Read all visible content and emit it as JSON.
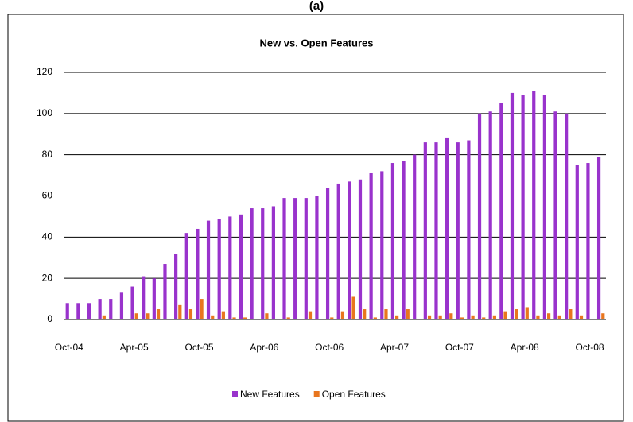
{
  "caption": "(a)",
  "chart_data": {
    "type": "bar",
    "title": "New vs. Open Features",
    "categories": [
      "Oct-04",
      null,
      null,
      null,
      null,
      null,
      "Apr-05",
      null,
      null,
      null,
      null,
      null,
      "Oct-05",
      null,
      null,
      null,
      null,
      null,
      "Apr-06",
      null,
      null,
      null,
      null,
      null,
      "Oct-06",
      null,
      null,
      null,
      null,
      null,
      "Apr-07",
      null,
      null,
      null,
      null,
      null,
      "Oct-07",
      null,
      null,
      null,
      null,
      null,
      "Apr-08",
      null,
      null,
      null,
      null,
      null,
      "Oct-08",
      null
    ],
    "series": [
      {
        "name": "New Features",
        "color": "#9933cc",
        "values": [
          8,
          8,
          8,
          10,
          10,
          13,
          16,
          21,
          20,
          27,
          32,
          42,
          44,
          48,
          49,
          50,
          51,
          54,
          54,
          55,
          59,
          59,
          59,
          60,
          64,
          66,
          67,
          68,
          71,
          72,
          76,
          77,
          80,
          86,
          86,
          88,
          86,
          87,
          100,
          101,
          105,
          110,
          109,
          111,
          109,
          101,
          100,
          75,
          76,
          79
        ]
      },
      {
        "name": "Open Features",
        "color": "#e8761e",
        "values": [
          0,
          0,
          0,
          2,
          0,
          0,
          3,
          3,
          5,
          0,
          7,
          5,
          10,
          2,
          4,
          1,
          1,
          0,
          3,
          0,
          1,
          0,
          4,
          0,
          1,
          4,
          11,
          5,
          1,
          5,
          2,
          5,
          0,
          2,
          2,
          3,
          1,
          2,
          1,
          2,
          4,
          5,
          6,
          2,
          3,
          2,
          5,
          2,
          0,
          3
        ]
      }
    ],
    "ylim": [
      0,
      120
    ],
    "yticks": [
      0,
      20,
      40,
      60,
      80,
      100,
      120
    ],
    "grid": true,
    "legend": "bottom"
  }
}
